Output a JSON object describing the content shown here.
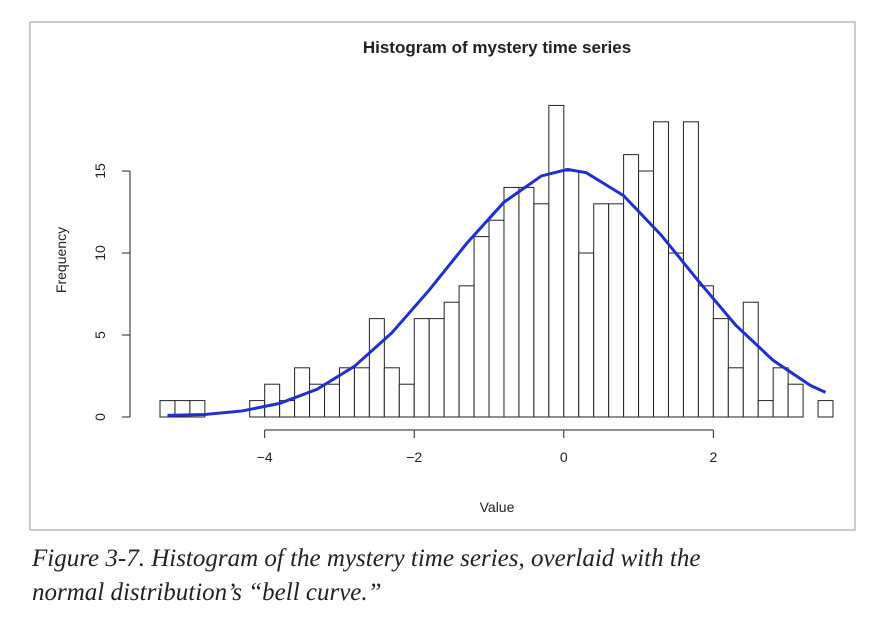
{
  "chart_data": {
    "type": "histogram",
    "title": "Histogram of mystery time series",
    "xlabel": "Value",
    "ylabel": "Frequency",
    "bins": [
      -5.4,
      -5.2,
      -5.0,
      -4.8,
      -4.6,
      -4.4,
      -4.2,
      -4.0,
      -3.8,
      -3.6,
      -3.4,
      -3.2,
      -3.0,
      -2.8,
      -2.6,
      -2.4,
      -2.2,
      -2.0,
      -1.8,
      -1.6,
      -1.4,
      -1.2,
      -1.0,
      -0.8,
      -0.6,
      -0.4,
      -0.2,
      0.0,
      0.2,
      0.4,
      0.6,
      0.8,
      1.0,
      1.2,
      1.4,
      1.6,
      1.8,
      2.0,
      2.2,
      2.4,
      2.6,
      2.8,
      3.0,
      3.2,
      3.4,
      3.6
    ],
    "values": [
      1,
      1,
      1,
      0,
      0,
      0,
      1,
      2,
      1,
      3,
      2,
      2,
      3,
      3,
      6,
      3,
      2,
      6,
      6,
      7,
      8,
      11,
      12,
      14,
      14,
      13,
      19,
      15,
      10,
      13,
      13,
      16,
      15,
      18,
      10,
      18,
      8,
      6,
      3,
      7,
      1,
      3,
      2,
      0,
      1
    ],
    "color": "#ffffff",
    "overlay": {
      "type": "line",
      "color": "#1f2fd0",
      "x": [
        -5.3,
        -4.8,
        -4.3,
        -3.8,
        -3.3,
        -2.8,
        -2.3,
        -1.8,
        -1.3,
        -0.8,
        -0.3,
        0.05,
        0.3,
        0.8,
        1.3,
        1.8,
        2.3,
        2.8,
        3.3,
        3.5
      ],
      "values": [
        0.1,
        0.15,
        0.37,
        0.83,
        1.69,
        3.09,
        5.13,
        7.74,
        10.58,
        13.1,
        14.7,
        15.1,
        14.9,
        13.5,
        11.1,
        8.3,
        5.6,
        3.45,
        1.92,
        1.5
      ]
    },
    "xlim": [
      -5.4,
      3.6
    ],
    "ylim": [
      0,
      19.6
    ],
    "xticks": [
      {
        "value": -4,
        "label": "−4"
      },
      {
        "value": -2,
        "label": "−2"
      },
      0,
      2
    ],
    "yticks": [
      0,
      5,
      10,
      15
    ]
  },
  "caption": [
    "Figure 3-7. Histogram of the mystery time series, overlaid with the",
    "normal distribution’s “bell curve.”"
  ]
}
